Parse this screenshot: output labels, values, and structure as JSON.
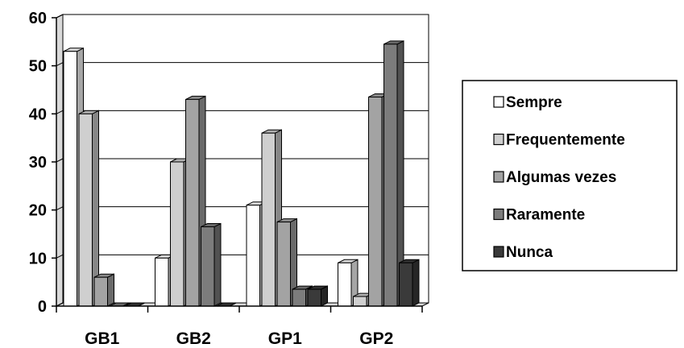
{
  "chart_data": {
    "type": "bar",
    "title": "",
    "xlabel": "",
    "ylabel": "",
    "categories": [
      "GB1",
      "GB2",
      "GP1",
      "GP2"
    ],
    "ylim": [
      0,
      60
    ],
    "yticks": [
      0,
      10,
      20,
      30,
      40,
      50,
      60
    ],
    "grid": true,
    "legend_position": "right",
    "style": "3d-clustered-column",
    "series": [
      {
        "name": "Sempre",
        "color": "#ffffff",
        "values": [
          53,
          10,
          21,
          9
        ]
      },
      {
        "name": "Frequentemente",
        "color": "#cfcfcf",
        "values": [
          40,
          30,
          36,
          2
        ]
      },
      {
        "name": "Algumas vezes",
        "color": "#a3a3a3",
        "values": [
          6,
          43,
          17.5,
          43.5
        ]
      },
      {
        "name": "Raramente",
        "color": "#7c7c7c",
        "values": [
          0,
          16.5,
          3.5,
          54.5
        ]
      },
      {
        "name": "Nunca",
        "color": "#3a3a3a",
        "values": [
          0,
          0,
          3.5,
          9
        ]
      }
    ]
  }
}
